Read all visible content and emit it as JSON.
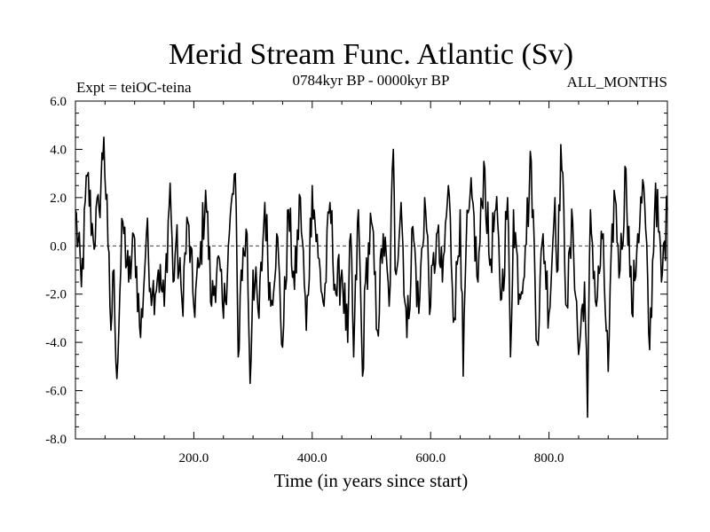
{
  "chart_data": {
    "type": "line",
    "title": "Merid Stream Func. Atlantic (Sv)",
    "subtitle_left": "Expt = teiOC-teina",
    "subtitle_center": "0784kyr BP - 0000kyr BP",
    "subtitle_right": "ALL_MONTHS",
    "xlabel": "Time (in years since start)",
    "ylabel": "",
    "xlim": [
      0,
      1000
    ],
    "ylim": [
      -8,
      6
    ],
    "x_ticks": [
      200,
      400,
      600,
      800
    ],
    "x_tick_labels": [
      "200.0",
      "400.0",
      "600.0",
      "800.0"
    ],
    "y_ticks": [
      -8,
      -6,
      -4,
      -2,
      0,
      2,
      4,
      6
    ],
    "y_tick_labels": [
      "-8.0",
      "-6.0",
      "-4.0",
      "-2.0",
      "0.0",
      "2.0",
      "4.0",
      "6.0"
    ],
    "zero_line": true,
    "grid": false,
    "line_color": "#000000",
    "series": [
      {
        "x": [
          0,
          10,
          20,
          30,
          40,
          48,
          55,
          60,
          65,
          70,
          75,
          80,
          90,
          100,
          110,
          120,
          130,
          140,
          150,
          160,
          165,
          170,
          180,
          190,
          200,
          210,
          220,
          230,
          240,
          250,
          260,
          270,
          275,
          280,
          290,
          295,
          300,
          310,
          320,
          330,
          340,
          350,
          360,
          370,
          380,
          390,
          400,
          410,
          420,
          430,
          440,
          450,
          460,
          465,
          470,
          478,
          485,
          490,
          500,
          510,
          520,
          530,
          537,
          540,
          550,
          560,
          570,
          580,
          590,
          600,
          610,
          620,
          630,
          640,
          650,
          655,
          660,
          670,
          680,
          690,
          700,
          710,
          720,
          730,
          735,
          740,
          750,
          760,
          770,
          780,
          790,
          800,
          810,
          815,
          820,
          830,
          840,
          850,
          860,
          865,
          870,
          880,
          890,
          900,
          910,
          920,
          930,
          940,
          950,
          960,
          970,
          980,
          990,
          1000
        ],
        "y": [
          1.5,
          -1.7,
          2.9,
          0.3,
          1.5,
          4.5,
          0.0,
          -3.5,
          -1.0,
          -5.5,
          -2.0,
          1.0,
          -1.5,
          0.3,
          -3.8,
          0.5,
          -2.0,
          -1.0,
          -2.5,
          2.6,
          -1.5,
          0.2,
          -2.3,
          1.0,
          -2.5,
          -0.8,
          2.3,
          -2.5,
          -0.5,
          -3.0,
          0.5,
          3.0,
          -4.6,
          -1.0,
          0.5,
          -5.7,
          -1.0,
          -3.0,
          1.8,
          -2.5,
          0.5,
          -4.2,
          1.5,
          -1.8,
          2.0,
          -3.5,
          2.5,
          -0.5,
          -2.5,
          1.8,
          -2.0,
          -1.0,
          -4.0,
          0.5,
          -4.6,
          1.5,
          -5.4,
          -1.5,
          1.0,
          -3.5,
          0.5,
          -2.5,
          4.0,
          -1.0,
          1.8,
          -3.8,
          0.8,
          -2.8,
          2.0,
          -2.5,
          0.5,
          -1.5,
          2.5,
          -3.0,
          1.5,
          -5.4,
          0.0,
          2.0,
          -1.5,
          3.5,
          -0.8,
          1.5,
          -2.2,
          2.0,
          -4.6,
          1.5,
          -2.0,
          0.0,
          3.5,
          -4.0,
          0.5,
          -2.8,
          2.0,
          -1.0,
          4.2,
          -2.5,
          1.0,
          -4.5,
          -1.5,
          -7.1,
          1.5,
          -2.5,
          0.3,
          -5.2,
          2.3,
          -1.0,
          3.2,
          -2.8,
          0.5,
          2.5,
          -4.3,
          2.6,
          -1.5,
          1.5
        ]
      }
    ]
  }
}
